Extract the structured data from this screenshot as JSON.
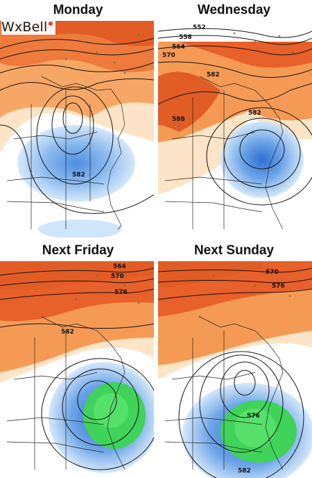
{
  "brand": {
    "text": "WxBell",
    "accent": "#e23b3b"
  },
  "panels": [
    {
      "title": "Monday",
      "labels": [
        "582"
      ]
    },
    {
      "title": "Wednesday",
      "labels": [
        "552",
        "558",
        "564",
        "570",
        "582",
        "582",
        "588"
      ]
    },
    {
      "title": "Next Friday",
      "labels": [
        "564",
        "570",
        "576",
        "582"
      ]
    },
    {
      "title": "Next Sunday",
      "labels": [
        "570",
        "576",
        "576",
        "582"
      ]
    }
  ],
  "colors": {
    "ridge_warm": "#e8602a",
    "ridge_mid": "#f59a55",
    "ridge_light": "#fbd4a8",
    "trough_light": "#bcd9f5",
    "trough_mid": "#6ea6e8",
    "trough_deep": "#2f6fd1",
    "precip_green": "#3fd35a"
  }
}
